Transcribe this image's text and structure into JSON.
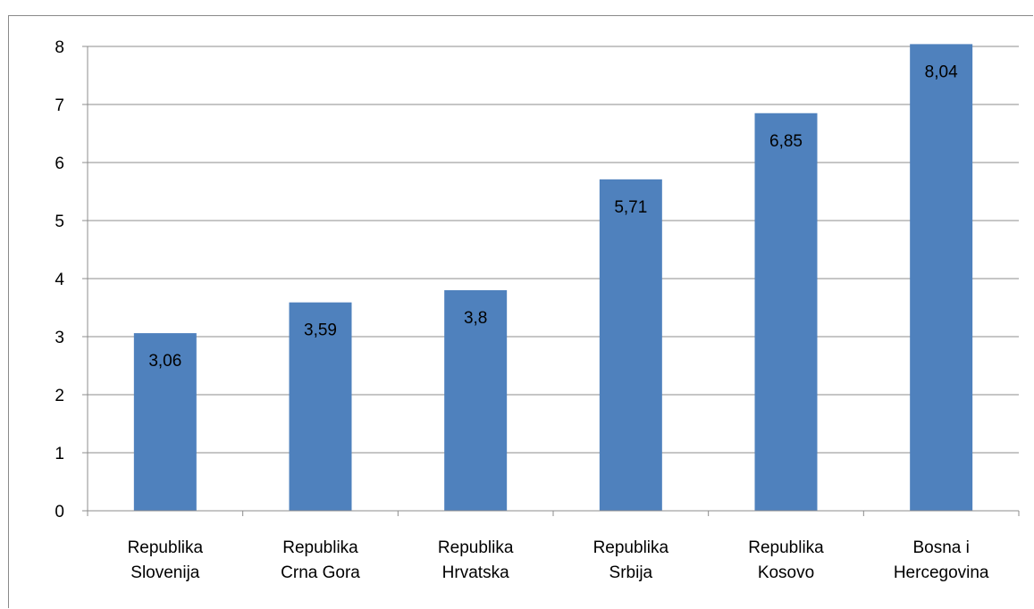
{
  "chart_data": {
    "type": "bar",
    "categories": [
      [
        "Republika",
        "Slovenija"
      ],
      [
        "Republika",
        "Crna Gora"
      ],
      [
        "Republika",
        "Hrvatska"
      ],
      [
        "Republika",
        "Srbija"
      ],
      [
        "Republika",
        "Kosovo"
      ],
      [
        "Bosna i",
        "Hercegovina"
      ]
    ],
    "values": [
      3.06,
      3.59,
      3.8,
      5.71,
      6.85,
      8.04
    ],
    "data_labels": [
      "3,06",
      "3,59",
      "3,8",
      "5,71",
      "6,85",
      "8,04"
    ],
    "y_ticks": [
      "0",
      "1",
      "2",
      "3",
      "4",
      "5",
      "6",
      "7",
      "8"
    ],
    "ylim": [
      0,
      8
    ],
    "grid": true,
    "legend": "none",
    "bar_color": "#4f81bd",
    "grid_color": "#8c8c8c",
    "title": "",
    "xlabel": "",
    "ylabel": ""
  }
}
